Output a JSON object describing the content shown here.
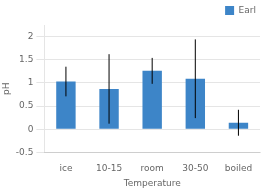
{
  "chart_data": {
    "type": "bar",
    "xlabel": "Temperature",
    "ylabel": "pH",
    "categories": [
      "ice",
      "10-15",
      "room",
      "30-50",
      "boiled"
    ],
    "series": [
      {
        "name": "Earl",
        "color": "#3d85c8",
        "values": [
          1.03,
          0.87,
          1.26,
          1.09,
          0.14
        ],
        "errors": [
          0.32,
          0.75,
          0.28,
          0.85,
          0.28
        ]
      }
    ],
    "ylim": [
      -0.5,
      2.25
    ],
    "yticks": [
      -0.5,
      0,
      0.5,
      1,
      1.5,
      2
    ],
    "grid": true,
    "legend": "upper right"
  }
}
